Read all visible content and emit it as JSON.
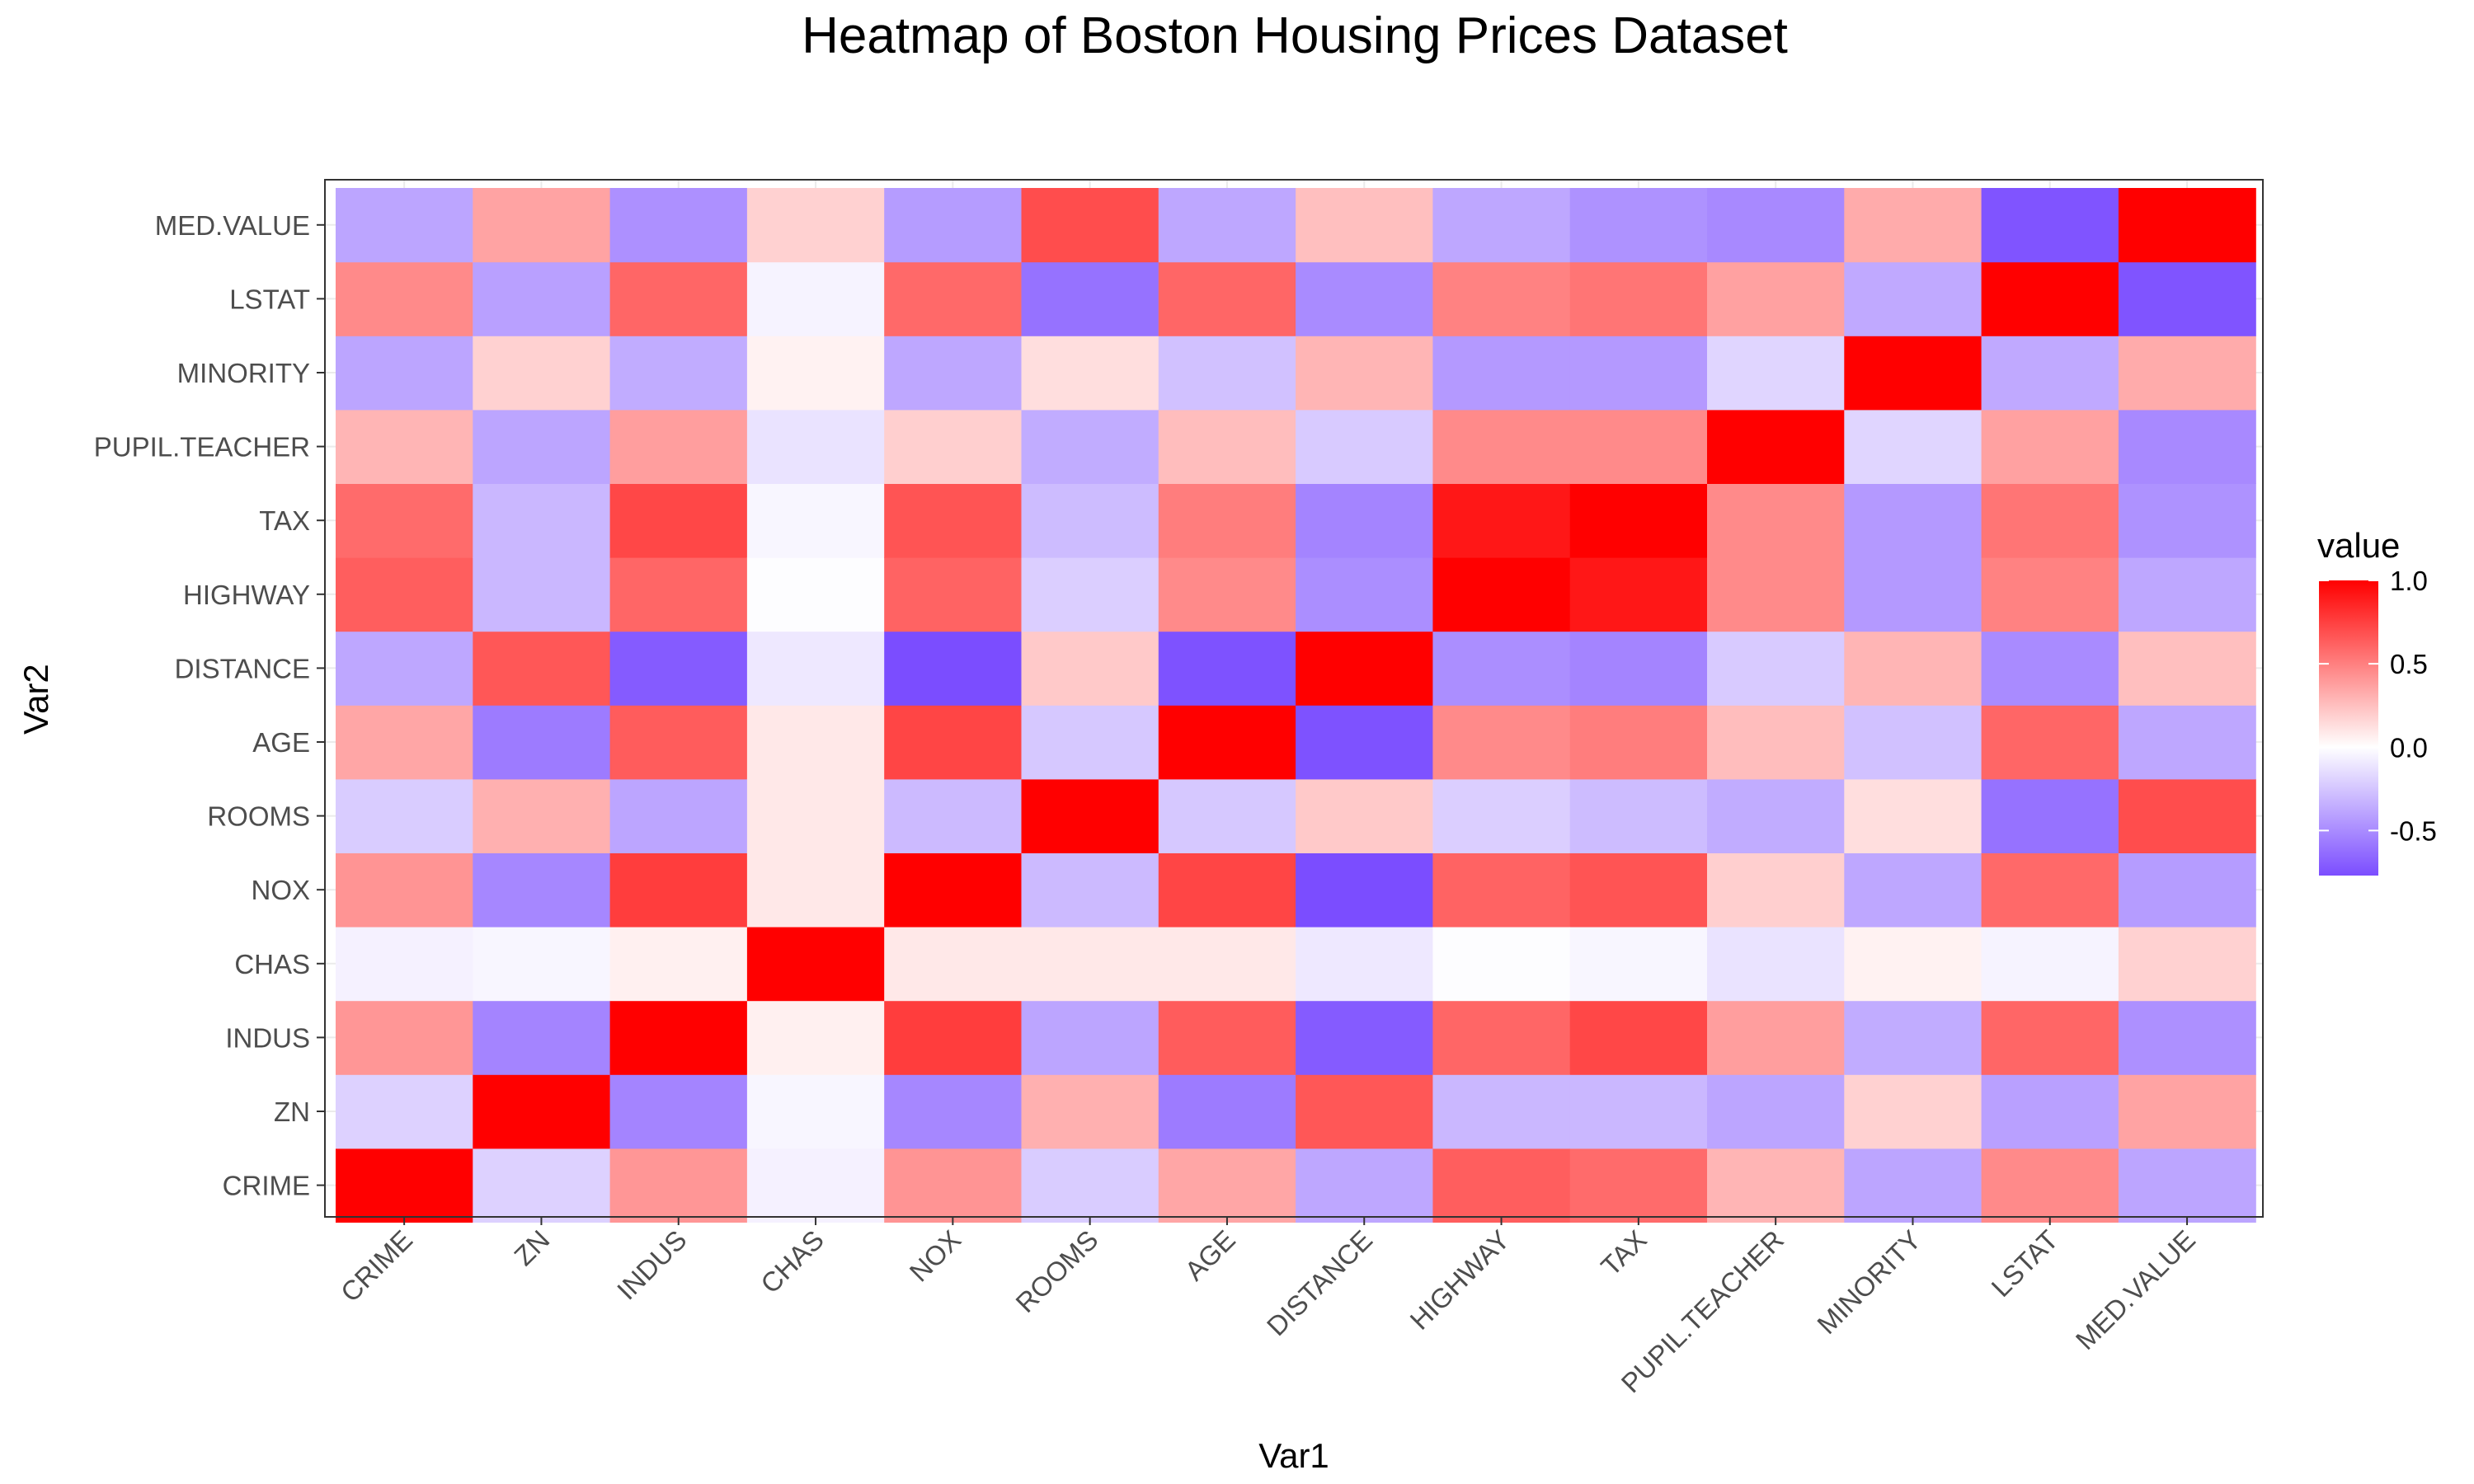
{
  "chart_data": {
    "type": "heatmap",
    "title": "Heatmap of Boston Housing Prices Dataset",
    "xlabel": "Var1",
    "ylabel": "Var2",
    "variables": [
      "CRIME",
      "ZN",
      "INDUS",
      "CHAS",
      "NOX",
      "ROOMS",
      "AGE",
      "DISTANCE",
      "HIGHWAY",
      "TAX",
      "PUPIL.TEACHER",
      "MINORITY",
      "LSTAT",
      "MED.VALUE"
    ],
    "matrix": [
      [
        1.0,
        -0.2,
        0.41,
        -0.06,
        0.42,
        -0.22,
        0.35,
        -0.38,
        0.63,
        0.58,
        0.29,
        -0.39,
        0.46,
        -0.39
      ],
      [
        -0.2,
        1.0,
        -0.53,
        -0.04,
        -0.52,
        0.31,
        -0.57,
        0.66,
        -0.31,
        -0.31,
        -0.39,
        0.18,
        -0.41,
        0.36
      ],
      [
        0.41,
        -0.53,
        1.0,
        0.06,
        0.76,
        -0.39,
        0.64,
        -0.71,
        0.6,
        0.72,
        0.38,
        -0.36,
        0.6,
        -0.48
      ],
      [
        -0.06,
        -0.04,
        0.06,
        1.0,
        0.09,
        0.09,
        0.09,
        -0.1,
        -0.01,
        -0.04,
        -0.12,
        0.05,
        -0.05,
        0.18
      ],
      [
        0.42,
        -0.52,
        0.76,
        0.09,
        1.0,
        -0.3,
        0.73,
        -0.77,
        0.61,
        0.67,
        0.19,
        -0.38,
        0.59,
        -0.43
      ],
      [
        -0.22,
        0.31,
        -0.39,
        0.09,
        -0.3,
        1.0,
        -0.24,
        0.21,
        -0.21,
        -0.29,
        -0.36,
        0.13,
        -0.61,
        0.7
      ],
      [
        0.35,
        -0.57,
        0.64,
        0.09,
        0.73,
        -0.24,
        1.0,
        -0.75,
        0.46,
        0.51,
        0.26,
        -0.27,
        0.6,
        -0.38
      ],
      [
        -0.38,
        0.66,
        -0.71,
        -0.1,
        -0.77,
        0.21,
        -0.75,
        1.0,
        -0.49,
        -0.53,
        -0.23,
        0.29,
        -0.5,
        0.25
      ],
      [
        0.63,
        -0.31,
        0.6,
        -0.01,
        0.61,
        -0.21,
        0.46,
        -0.49,
        1.0,
        0.91,
        0.46,
        -0.44,
        0.49,
        -0.38
      ],
      [
        0.58,
        -0.31,
        0.72,
        -0.04,
        0.67,
        -0.29,
        0.51,
        -0.53,
        0.91,
        1.0,
        0.46,
        -0.44,
        0.54,
        -0.47
      ],
      [
        0.29,
        -0.39,
        0.38,
        -0.12,
        0.19,
        -0.36,
        0.26,
        -0.23,
        0.46,
        0.46,
        1.0,
        -0.18,
        0.37,
        -0.51
      ],
      [
        -0.39,
        0.18,
        -0.36,
        0.05,
        -0.38,
        0.13,
        -0.27,
        0.29,
        -0.44,
        -0.44,
        -0.18,
        1.0,
        -0.37,
        0.33
      ],
      [
        0.46,
        -0.41,
        0.6,
        -0.05,
        0.59,
        -0.61,
        0.6,
        -0.5,
        0.49,
        0.54,
        0.37,
        -0.37,
        1.0,
        -0.74
      ],
      [
        -0.39,
        0.36,
        -0.48,
        0.18,
        -0.43,
        0.7,
        -0.38,
        0.25,
        -0.38,
        -0.47,
        -0.51,
        0.33,
        -0.74,
        1.0
      ]
    ],
    "value_range": [
      -0.77,
      1.0
    ],
    "legend": {
      "title": "value",
      "ticks": [
        1.0,
        0.5,
        0.0,
        -0.5
      ],
      "tick_labels": [
        "1.0",
        "0.5",
        "0.0",
        "-0.5"
      ],
      "placement": "right"
    },
    "colors": {
      "low": "#7b4dff",
      "mid": "#ffffff",
      "high": "#ff0000",
      "panel_border": "#333333",
      "grid": "#ebebeb"
    }
  }
}
